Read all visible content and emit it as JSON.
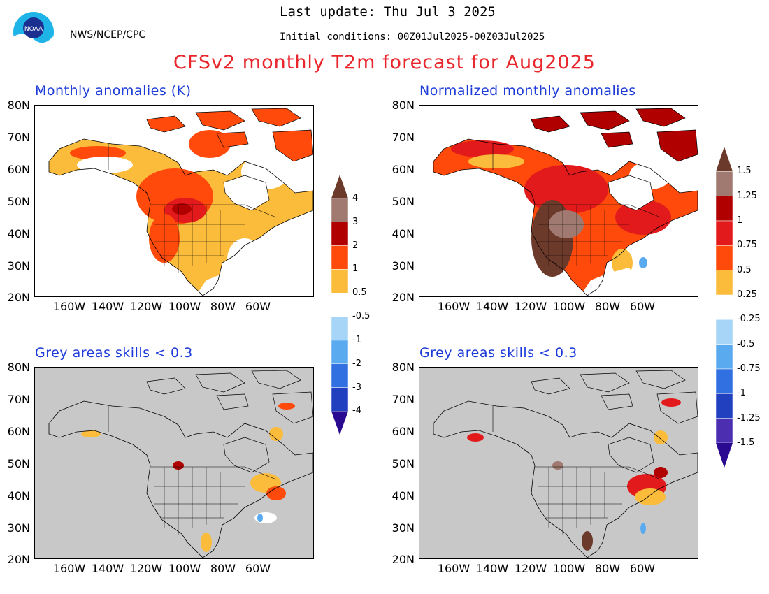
{
  "header": {
    "last_update": "Last update: Thu Jul 3 2025",
    "initial_conditions": "Initial conditions: 00Z01Jul2025-00Z03Jul2025",
    "agency": "NWS/NCEP/CPC",
    "logo_text": "NOAA",
    "main_title": "CFSv2 monthly T2m forecast for Aug2025"
  },
  "panels": [
    {
      "title": "Monthly anomalies (K)",
      "kind": "anomaly"
    },
    {
      "title": "Normalized monthly anomalies",
      "kind": "anomaly-normalized"
    },
    {
      "title": "Grey areas skills < 0.3",
      "kind": "skill-masked"
    },
    {
      "title": "Grey areas skills < 0.3",
      "kind": "skill-masked-normalized"
    }
  ],
  "axes": {
    "lat_labels": [
      "80N",
      "70N",
      "60N",
      "50N",
      "40N",
      "30N",
      "20N"
    ],
    "lon_labels": [
      "160W",
      "140W",
      "120W",
      "100W",
      "80W",
      "60W"
    ]
  },
  "colorbar_left": {
    "labels": [
      "4",
      "3",
      "2",
      "1",
      "0.5",
      "-0.5",
      "-1",
      "-2",
      "-3",
      "-4"
    ]
  },
  "colorbar_right": {
    "labels": [
      "1.5",
      "1.25",
      "1",
      "0.75",
      "0.5",
      "0.25",
      "-0.25",
      "-0.5",
      "-0.75",
      "-1",
      "-1.25",
      "-1.5"
    ]
  },
  "colors": {
    "c_pos1": "#fbbc3c",
    "c_pos2": "#ff4a0b",
    "c_pos3": "#e31a1c",
    "c_pos4": "#b00000",
    "c_pos5": "#a07a70",
    "c_pos6": "#6b3a2a",
    "c_neg1": "#a6d5f7",
    "c_neg2": "#5aaaf0",
    "c_neg3": "#3070e0",
    "c_neg4": "#2040c0",
    "c_neg5": "#4b2fb0",
    "c_neg6": "#2a0a90",
    "grey_mask": "#c8c8c8",
    "title_red": "#e8262b",
    "panel_title_blue": "#1d3bd8"
  }
}
